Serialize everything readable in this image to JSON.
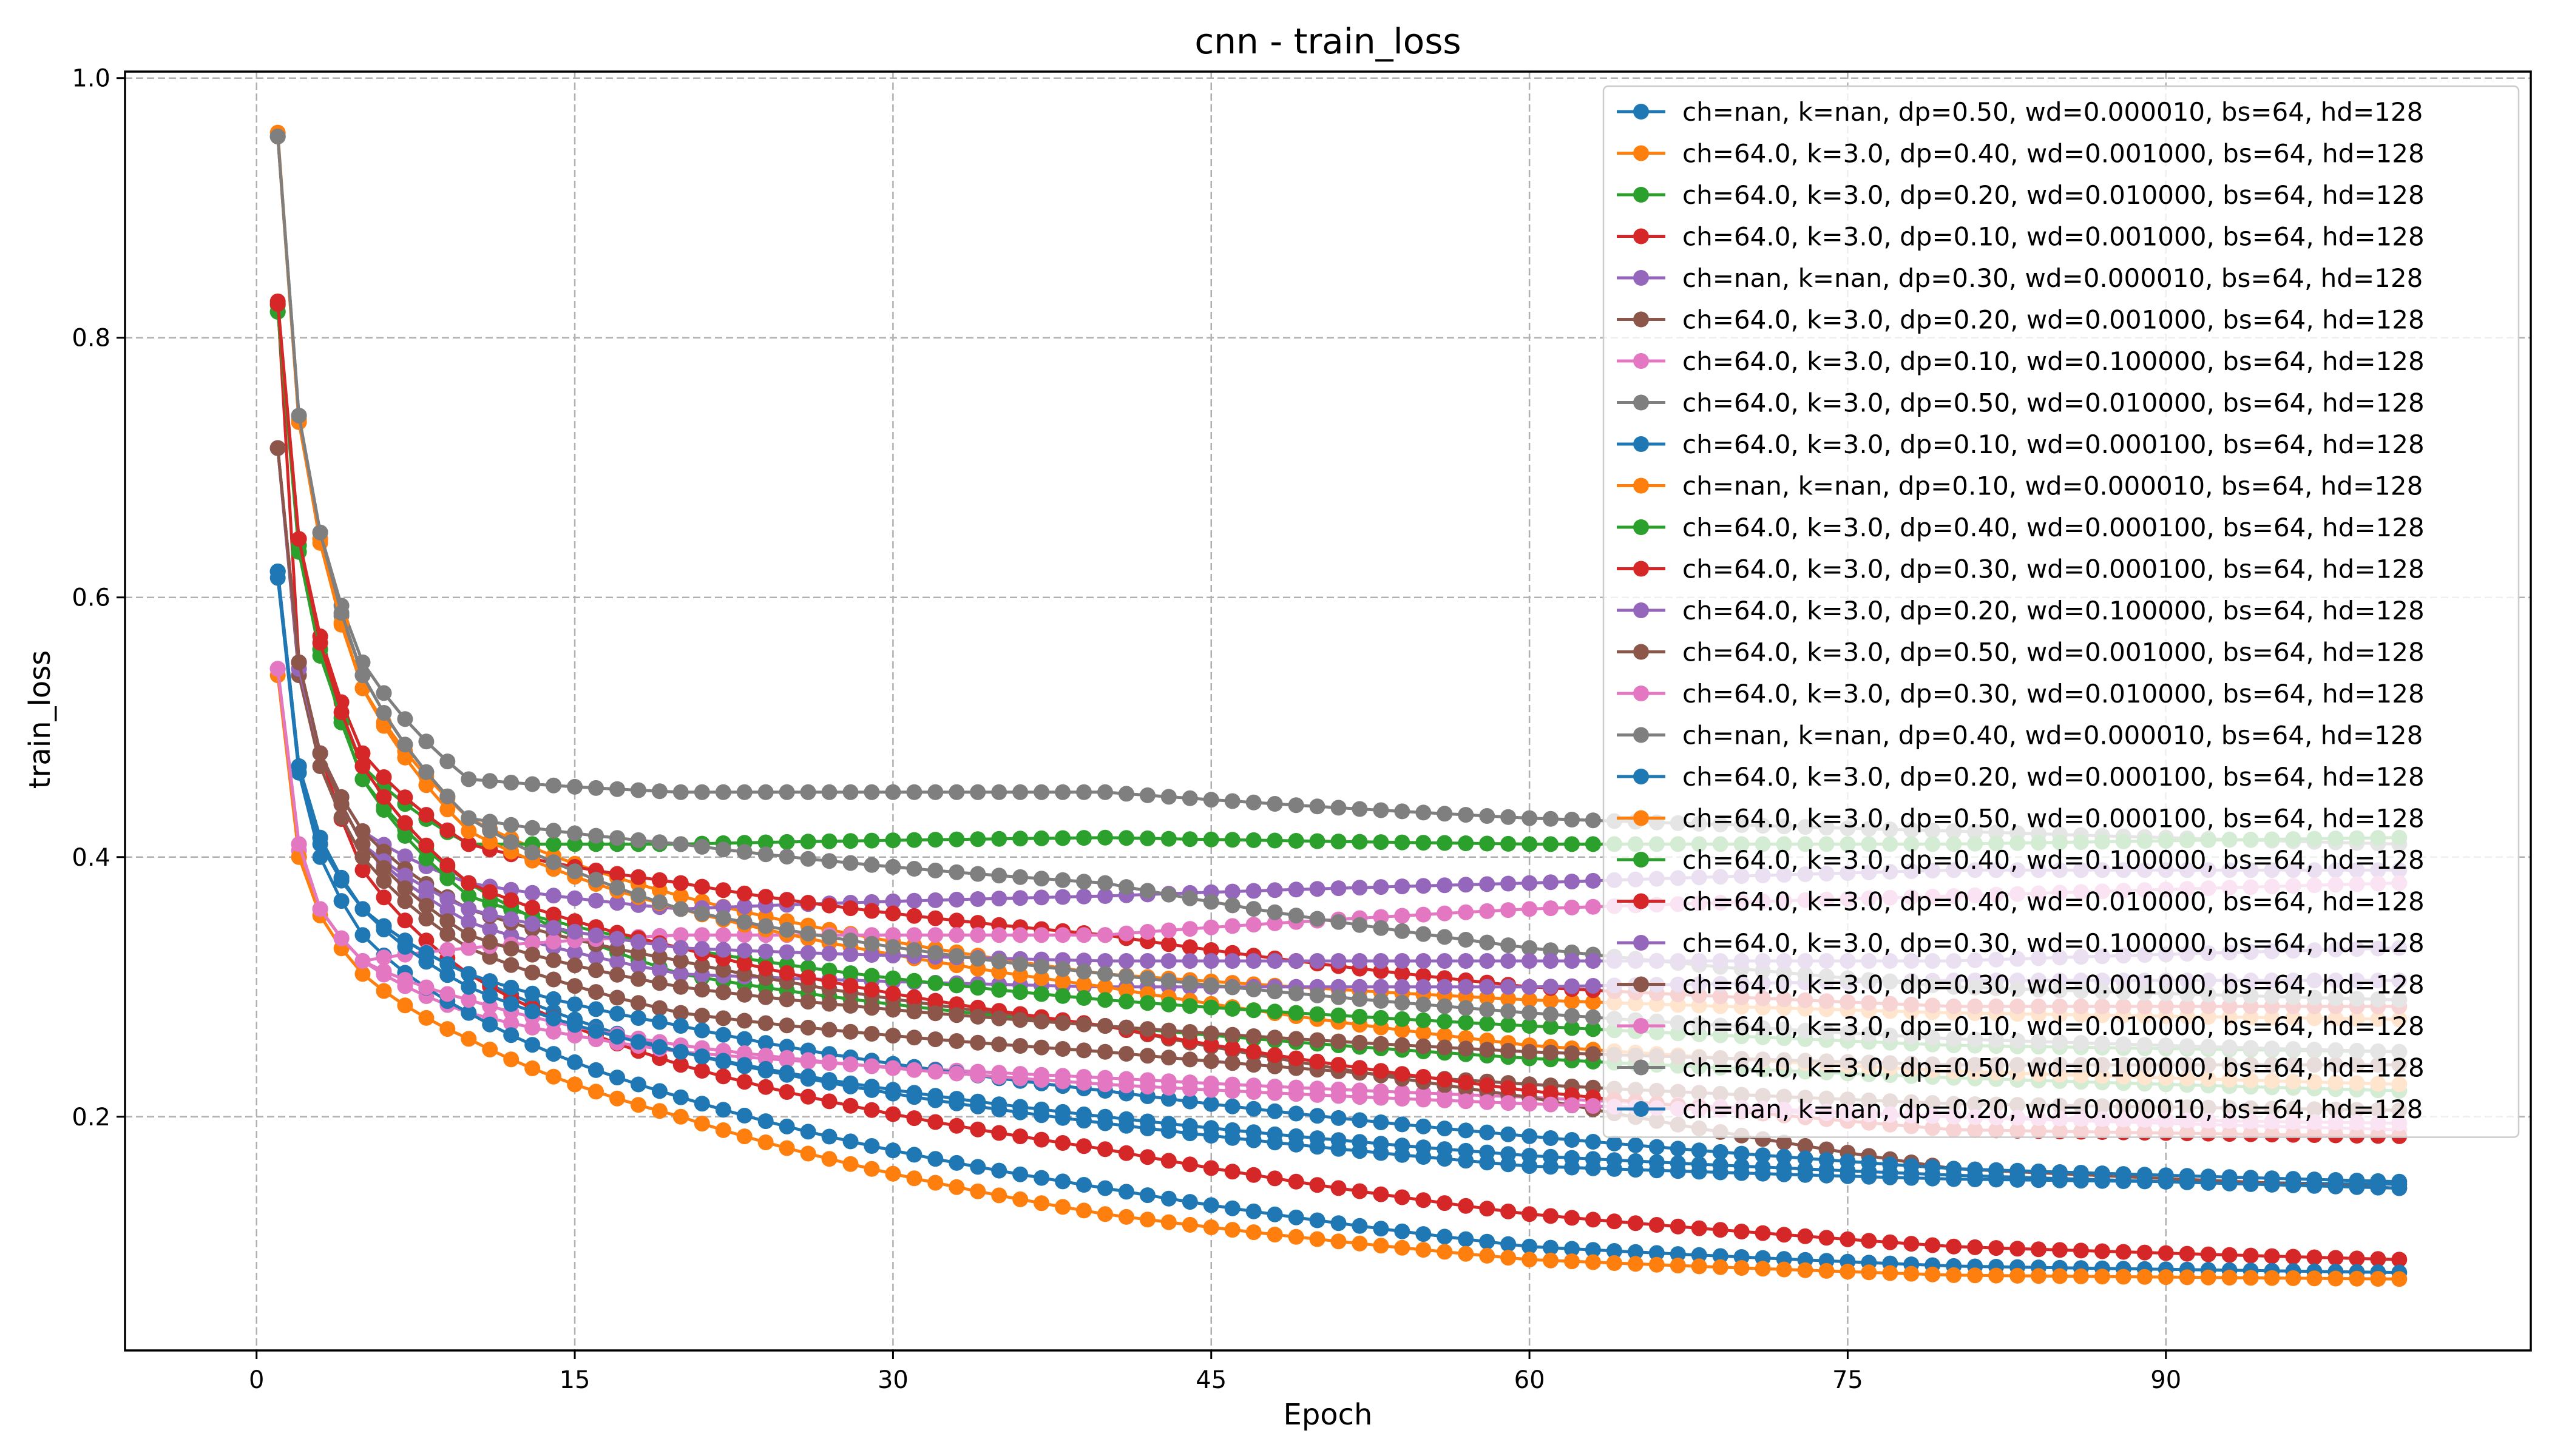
{
  "chart_data": {
    "type": "line",
    "title": "cnn - train_loss",
    "xlabel": "Epoch",
    "ylabel": "train_loss",
    "xlim": [
      -6.2,
      107.2
    ],
    "ylim": [
      0.02,
      1.005
    ],
    "xticks": [
      0,
      15,
      30,
      45,
      60,
      75,
      90
    ],
    "xtick_labels": [
      "0",
      "15",
      "30",
      "45",
      "60",
      "75",
      "90"
    ],
    "yticks": [
      0.2,
      0.4,
      0.6,
      0.8,
      1.0
    ],
    "ytick_labels": [
      "0.2",
      "0.4",
      "0.6",
      "0.8",
      "1.0"
    ],
    "grid": true,
    "legend_position": "top-right",
    "epochs": [
      1,
      101
    ],
    "series": [
      {
        "name": "ch=nan, k=nan, dp=0.50, wd=0.000010, bs=64, hd=128",
        "color": "#1f77b4",
        "anchors": [
          [
            1,
            0.62
          ],
          [
            2,
            0.47
          ],
          [
            3,
            0.41
          ],
          [
            5,
            0.36
          ],
          [
            10,
            0.31
          ],
          [
            20,
            0.25
          ],
          [
            40,
            0.195
          ],
          [
            60,
            0.162
          ],
          [
            80,
            0.152
          ],
          [
            101,
            0.148
          ]
        ]
      },
      {
        "name": "ch=64.0, k=3.0, dp=0.40, wd=0.001000, bs=64, hd=128",
        "color": "#ff7f0e",
        "anchors": [
          [
            1,
            0.958
          ],
          [
            2,
            0.737
          ],
          [
            3,
            0.642
          ],
          [
            5,
            0.53
          ],
          [
            10,
            0.43
          ],
          [
            20,
            0.37
          ],
          [
            40,
            0.31
          ],
          [
            60,
            0.29
          ],
          [
            80,
            0.28
          ],
          [
            101,
            0.275
          ]
        ]
      },
      {
        "name": "ch=64.0, k=3.0, dp=0.20, wd=0.010000, bs=64, hd=128",
        "color": "#2ca02c",
        "anchors": [
          [
            1,
            0.82
          ],
          [
            2,
            0.64
          ],
          [
            3,
            0.56
          ],
          [
            5,
            0.46
          ],
          [
            10,
            0.38
          ],
          [
            20,
            0.31
          ],
          [
            40,
            0.27
          ],
          [
            60,
            0.245
          ],
          [
            80,
            0.23
          ],
          [
            101,
            0.22
          ]
        ]
      },
      {
        "name": "ch=64.0, k=3.0, dp=0.10, wd=0.001000, bs=64, hd=128",
        "color": "#d62728",
        "anchors": [
          [
            1,
            0.826
          ],
          [
            2,
            0.55
          ],
          [
            3,
            0.48
          ],
          [
            5,
            0.39
          ],
          [
            10,
            0.31
          ],
          [
            20,
            0.24
          ],
          [
            40,
            0.175
          ],
          [
            60,
            0.125
          ],
          [
            80,
            0.1
          ],
          [
            101,
            0.09
          ]
        ]
      },
      {
        "name": "ch=nan, k=nan, dp=0.30, wd=0.000010, bs=64, hd=128",
        "color": "#9467bd",
        "anchors": [
          [
            1,
            0.715
          ],
          [
            2,
            0.55
          ],
          [
            3,
            0.48
          ],
          [
            5,
            0.42
          ],
          [
            10,
            0.38
          ],
          [
            20,
            0.36
          ],
          [
            40,
            0.37
          ],
          [
            60,
            0.38
          ],
          [
            80,
            0.39
          ],
          [
            101,
            0.39
          ]
        ]
      },
      {
        "name": "ch=64.0, k=3.0, dp=0.20, wd=0.001000, bs=64, hd=128",
        "color": "#8c564b",
        "anchors": [
          [
            1,
            0.715
          ],
          [
            2,
            0.54
          ],
          [
            3,
            0.47
          ],
          [
            5,
            0.4
          ],
          [
            10,
            0.33
          ],
          [
            20,
            0.28
          ],
          [
            40,
            0.25
          ],
          [
            60,
            0.225
          ],
          [
            80,
            0.21
          ],
          [
            101,
            0.205
          ]
        ]
      },
      {
        "name": "ch=64.0, k=3.0, dp=0.10, wd=0.100000, bs=64, hd=128",
        "color": "#e377c2",
        "anchors": [
          [
            1,
            0.545
          ],
          [
            2,
            0.405
          ],
          [
            3,
            0.36
          ],
          [
            5,
            0.32
          ],
          [
            10,
            0.28
          ],
          [
            20,
            0.25
          ],
          [
            40,
            0.23
          ],
          [
            60,
            0.215
          ],
          [
            80,
            0.2
          ],
          [
            101,
            0.19
          ]
        ]
      },
      {
        "name": "ch=64.0, k=3.0, dp=0.50, wd=0.010000, bs=64, hd=128",
        "color": "#7f7f7f",
        "anchors": [
          [
            1,
            0.955
          ],
          [
            2,
            0.74
          ],
          [
            3,
            0.65
          ],
          [
            5,
            0.55
          ],
          [
            10,
            0.46
          ],
          [
            20,
            0.45
          ],
          [
            40,
            0.45
          ],
          [
            60,
            0.43
          ],
          [
            80,
            0.42
          ],
          [
            101,
            0.41
          ]
        ]
      },
      {
        "name": "ch=64.0, k=3.0, dp=0.10, wd=0.000100, bs=64, hd=128",
        "color": "#1f77b4",
        "anchors": [
          [
            1,
            0.615
          ],
          [
            2,
            0.465
          ],
          [
            3,
            0.4
          ],
          [
            5,
            0.34
          ],
          [
            10,
            0.28
          ],
          [
            20,
            0.215
          ],
          [
            40,
            0.145
          ],
          [
            60,
            0.1
          ],
          [
            80,
            0.085
          ],
          [
            101,
            0.08
          ]
        ]
      },
      {
        "name": "ch=nan, k=nan, dp=0.10, wd=0.000010, bs=64, hd=128",
        "color": "#ff7f0e",
        "anchors": [
          [
            1,
            0.54
          ],
          [
            2,
            0.4
          ],
          [
            3,
            0.355
          ],
          [
            5,
            0.31
          ],
          [
            10,
            0.26
          ],
          [
            20,
            0.2
          ],
          [
            40,
            0.125
          ],
          [
            60,
            0.09
          ],
          [
            80,
            0.078
          ],
          [
            101,
            0.075
          ]
        ]
      },
      {
        "name": "ch=64.0, k=3.0, dp=0.40, wd=0.000100, bs=64, hd=128",
        "color": "#2ca02c",
        "anchors": [
          [
            1,
            0.82
          ],
          [
            2,
            0.635
          ],
          [
            3,
            0.555
          ],
          [
            5,
            0.47
          ],
          [
            10,
            0.41
          ],
          [
            20,
            0.41
          ],
          [
            40,
            0.415
          ],
          [
            60,
            0.41
          ],
          [
            80,
            0.41
          ],
          [
            101,
            0.415
          ]
        ]
      },
      {
        "name": "ch=64.0, k=3.0, dp=0.30, wd=0.000100, bs=64, hd=128",
        "color": "#d62728",
        "anchors": [
          [
            1,
            0.828
          ],
          [
            2,
            0.645
          ],
          [
            3,
            0.57
          ],
          [
            5,
            0.48
          ],
          [
            10,
            0.41
          ],
          [
            20,
            0.38
          ],
          [
            40,
            0.34
          ],
          [
            60,
            0.3
          ],
          [
            80,
            0.285
          ],
          [
            101,
            0.285
          ]
        ]
      },
      {
        "name": "ch=64.0, k=3.0, dp=0.20, wd=0.100000, bs=64, hd=128",
        "color": "#9467bd",
        "anchors": [
          [
            1,
            0.715
          ],
          [
            2,
            0.545
          ],
          [
            3,
            0.48
          ],
          [
            5,
            0.41
          ],
          [
            10,
            0.35
          ],
          [
            20,
            0.31
          ],
          [
            40,
            0.3
          ],
          [
            60,
            0.3
          ],
          [
            80,
            0.305
          ],
          [
            101,
            0.305
          ]
        ]
      },
      {
        "name": "ch=64.0, k=3.0, dp=0.50, wd=0.001000, bs=64, hd=128",
        "color": "#8c564b",
        "anchors": [
          [
            1,
            0.715
          ],
          [
            2,
            0.55
          ],
          [
            3,
            0.48
          ],
          [
            5,
            0.42
          ],
          [
            10,
            0.36
          ],
          [
            20,
            0.32
          ],
          [
            40,
            0.27
          ],
          [
            60,
            0.215
          ],
          [
            80,
            0.16
          ],
          [
            101,
            0.145
          ]
        ]
      },
      {
        "name": "ch=64.0, k=3.0, dp=0.30, wd=0.010000, bs=64, hd=128",
        "color": "#e377c2",
        "anchors": [
          [
            1,
            0.545
          ],
          [
            2,
            0.41
          ],
          [
            3,
            0.36
          ],
          [
            5,
            0.32
          ],
          [
            10,
            0.33
          ],
          [
            20,
            0.34
          ],
          [
            40,
            0.34
          ],
          [
            60,
            0.36
          ],
          [
            80,
            0.37
          ],
          [
            101,
            0.38
          ]
        ]
      },
      {
        "name": "ch=nan, k=nan, dp=0.40, wd=0.000010, bs=64, hd=128",
        "color": "#7f7f7f",
        "anchors": [
          [
            1,
            0.955
          ],
          [
            2,
            0.735
          ],
          [
            3,
            0.645
          ],
          [
            5,
            0.54
          ],
          [
            10,
            0.43
          ],
          [
            20,
            0.41
          ],
          [
            40,
            0.38
          ],
          [
            60,
            0.33
          ],
          [
            80,
            0.3
          ],
          [
            101,
            0.29
          ]
        ]
      },
      {
        "name": "ch=64.0, k=3.0, dp=0.20, wd=0.000100, bs=64, hd=128",
        "color": "#1f77b4",
        "anchors": [
          [
            1,
            0.62
          ],
          [
            2,
            0.47
          ],
          [
            3,
            0.415
          ],
          [
            5,
            0.36
          ],
          [
            10,
            0.31
          ],
          [
            20,
            0.27
          ],
          [
            40,
            0.22
          ],
          [
            60,
            0.185
          ],
          [
            80,
            0.16
          ],
          [
            101,
            0.15
          ]
        ]
      },
      {
        "name": "ch=64.0, k=3.0, dp=0.50, wd=0.000100, bs=64, hd=128",
        "color": "#ff7f0e",
        "anchors": [
          [
            1,
            0.955
          ],
          [
            2,
            0.735
          ],
          [
            3,
            0.645
          ],
          [
            5,
            0.53
          ],
          [
            10,
            0.42
          ],
          [
            20,
            0.36
          ],
          [
            40,
            0.3
          ],
          [
            60,
            0.255
          ],
          [
            80,
            0.235
          ],
          [
            101,
            0.225
          ]
        ]
      },
      {
        "name": "ch=64.0, k=3.0, dp=0.40, wd=0.100000, bs=64, hd=128",
        "color": "#2ca02c",
        "anchors": [
          [
            1,
            0.825
          ],
          [
            2,
            0.64
          ],
          [
            3,
            0.56
          ],
          [
            5,
            0.46
          ],
          [
            10,
            0.37
          ],
          [
            20,
            0.33
          ],
          [
            40,
            0.29
          ],
          [
            60,
            0.27
          ],
          [
            80,
            0.255
          ],
          [
            101,
            0.25
          ]
        ]
      },
      {
        "name": "ch=64.0, k=3.0, dp=0.40, wd=0.010000, bs=64, hd=128",
        "color": "#d62728",
        "anchors": [
          [
            1,
            0.826
          ],
          [
            2,
            0.645
          ],
          [
            3,
            0.565
          ],
          [
            5,
            0.47
          ],
          [
            10,
            0.38
          ],
          [
            20,
            0.33
          ],
          [
            40,
            0.27
          ],
          [
            60,
            0.22
          ],
          [
            80,
            0.19
          ],
          [
            101,
            0.185
          ]
        ]
      },
      {
        "name": "ch=64.0, k=3.0, dp=0.30, wd=0.100000, bs=64, hd=128",
        "color": "#9467bd",
        "anchors": [
          [
            1,
            0.715
          ],
          [
            2,
            0.545
          ],
          [
            3,
            0.48
          ],
          [
            5,
            0.41
          ],
          [
            10,
            0.36
          ],
          [
            20,
            0.33
          ],
          [
            40,
            0.32
          ],
          [
            60,
            0.32
          ],
          [
            80,
            0.32
          ],
          [
            101,
            0.33
          ]
        ]
      },
      {
        "name": "ch=64.0, k=3.0, dp=0.30, wd=0.001000, bs=64, hd=128",
        "color": "#8c564b",
        "anchors": [
          [
            1,
            0.715
          ],
          [
            2,
            0.55
          ],
          [
            3,
            0.48
          ],
          [
            5,
            0.41
          ],
          [
            10,
            0.34
          ],
          [
            20,
            0.3
          ],
          [
            40,
            0.27
          ],
          [
            60,
            0.25
          ],
          [
            80,
            0.24
          ],
          [
            101,
            0.24
          ]
        ]
      },
      {
        "name": "ch=64.0, k=3.0, dp=0.10, wd=0.010000, bs=64, hd=128",
        "color": "#e377c2",
        "anchors": [
          [
            1,
            0.545
          ],
          [
            2,
            0.41
          ],
          [
            3,
            0.36
          ],
          [
            5,
            0.32
          ],
          [
            10,
            0.29
          ],
          [
            20,
            0.255
          ],
          [
            40,
            0.225
          ],
          [
            60,
            0.21
          ],
          [
            80,
            0.2
          ],
          [
            101,
            0.195
          ]
        ]
      },
      {
        "name": "ch=64.0, k=3.0, dp=0.50, wd=0.100000, bs=64, hd=128",
        "color": "#7f7f7f",
        "anchors": [
          [
            1,
            0.955
          ],
          [
            2,
            0.74
          ],
          [
            3,
            0.65
          ],
          [
            5,
            0.54
          ],
          [
            10,
            0.43
          ],
          [
            20,
            0.36
          ],
          [
            40,
            0.31
          ],
          [
            60,
            0.28
          ],
          [
            80,
            0.26
          ],
          [
            101,
            0.25
          ]
        ]
      },
      {
        "name": "ch=nan, k=nan, dp=0.20, wd=0.000010, bs=64, hd=128",
        "color": "#1f77b4",
        "anchors": [
          [
            1,
            0.62
          ],
          [
            2,
            0.47
          ],
          [
            3,
            0.415
          ],
          [
            5,
            0.36
          ],
          [
            10,
            0.3
          ],
          [
            20,
            0.25
          ],
          [
            40,
            0.2
          ],
          [
            60,
            0.17
          ],
          [
            80,
            0.155
          ],
          [
            101,
            0.145
          ]
        ]
      }
    ]
  }
}
